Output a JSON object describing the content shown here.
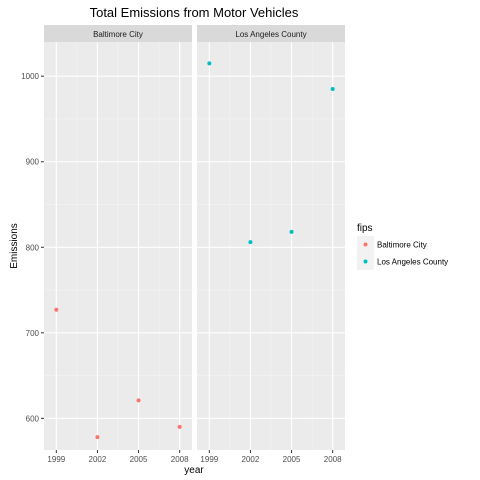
{
  "chart_data": {
    "type": "scatter",
    "title": "Total Emissions from Motor Vehicles",
    "xlabel": "year",
    "ylabel": "Emissions",
    "x_ticks": [
      1999,
      2002,
      2005,
      2008
    ],
    "y_ticks": [
      600,
      700,
      800,
      900,
      1000
    ],
    "ylim": [
      563,
      1040
    ],
    "xlim": [
      1998.1,
      2008.9
    ],
    "facets": [
      "Baltimore City",
      "Los Angeles County"
    ],
    "legend": {
      "title": "fips",
      "position": "right",
      "entries": [
        {
          "label": "Baltimore City",
          "color": "#F8766D"
        },
        {
          "label": "Los Angeles County",
          "color": "#00BFC4"
        }
      ]
    },
    "series": [
      {
        "name": "Baltimore City",
        "color": "#F8766D",
        "x": [
          1999,
          2002,
          2005,
          2008
        ],
        "values": [
          727,
          578,
          621,
          590
        ]
      },
      {
        "name": "Los Angeles County",
        "color": "#00BFC4",
        "x": [
          1999,
          2002,
          2005,
          2008
        ],
        "values": [
          1015,
          806,
          818,
          985
        ]
      }
    ]
  }
}
